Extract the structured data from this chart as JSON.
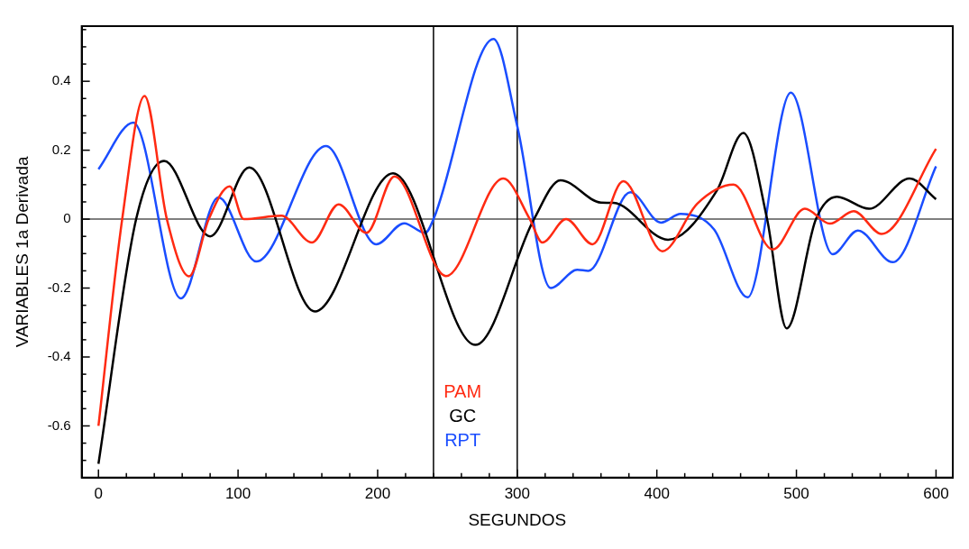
{
  "chart_data": {
    "type": "line",
    "xlabel": "SEGUNDOS",
    "ylabel": "VARIABLES 1a Derivada",
    "xlim": [
      -12,
      612
    ],
    "ylim": [
      -0.75,
      0.56
    ],
    "xticks": [
      0,
      {
        "value": 20,
        "label": null
      },
      {
        "value": 40,
        "label": null
      },
      {
        "value": 60,
        "label": null
      },
      {
        "value": 80,
        "label": null
      },
      100,
      {
        "value": 120,
        "label": null
      },
      {
        "value": 140,
        "label": null
      },
      {
        "value": 160,
        "label": null
      },
      {
        "value": 180,
        "label": null
      },
      200,
      {
        "value": 220,
        "label": null
      },
      {
        "value": 240,
        "label": null
      },
      {
        "value": 260,
        "label": null
      },
      {
        "value": 280,
        "label": null
      },
      300,
      {
        "value": 320,
        "label": null
      },
      {
        "value": 340,
        "label": null
      },
      {
        "value": 360,
        "label": null
      },
      {
        "value": 380,
        "label": null
      },
      400,
      {
        "value": 420,
        "label": null
      },
      {
        "value": 440,
        "label": null
      },
      {
        "value": 460,
        "label": null
      },
      {
        "value": 480,
        "label": null
      },
      500,
      {
        "value": 520,
        "label": null
      },
      {
        "value": 540,
        "label": null
      },
      {
        "value": 560,
        "label": null
      },
      {
        "value": 580,
        "label": null
      },
      600
    ],
    "yticks": [
      {
        "value": -0.7,
        "label": null
      },
      {
        "value": -0.65,
        "label": null
      },
      -0.6,
      {
        "value": -0.55,
        "label": null
      },
      {
        "value": -0.5,
        "label": null
      },
      {
        "value": -0.45,
        "label": null
      },
      -0.4,
      {
        "value": -0.35,
        "label": null
      },
      {
        "value": -0.3,
        "label": null
      },
      {
        "value": -0.25,
        "label": null
      },
      -0.2,
      {
        "value": -0.15,
        "label": null
      },
      {
        "value": -0.1,
        "label": null
      },
      {
        "value": -0.05,
        "label": null
      },
      0,
      {
        "value": 0.05,
        "label": null
      },
      {
        "value": 0.1,
        "label": null
      },
      {
        "value": 0.15,
        "label": null
      },
      0.2,
      {
        "value": 0.25,
        "label": null
      },
      {
        "value": 0.3,
        "label": null
      },
      {
        "value": 0.35,
        "label": null
      },
      0.4,
      {
        "value": 0.45,
        "label": null
      },
      {
        "value": 0.5,
        "label": null
      },
      {
        "value": 0.55,
        "label": null
      }
    ],
    "grid": false,
    "legend": "bottom",
    "marker": "none",
    "line_style": "solid",
    "ref_lines": [
      {
        "axis": "y",
        "value": 0,
        "color": "#555555"
      },
      {
        "axis": "x",
        "value": 240,
        "color": "#000000"
      },
      {
        "axis": "x",
        "value": 300,
        "color": "#000000"
      }
    ],
    "series": [
      {
        "name": "PAM",
        "color": "#ff2a12",
        "x": [
          0,
          17,
          33,
          49,
          65,
          79,
          94,
          104,
          131,
          153,
          172,
          192,
          212,
          249,
          290,
          309,
          318,
          335,
          354,
          376,
          404,
          429,
          455,
          483,
          506,
          524,
          541,
          561,
          600
        ],
        "values": [
          -0.6,
          0,
          0.357,
          0,
          -0.166,
          0,
          0.095,
          0,
          0.01,
          -0.068,
          0.043,
          -0.04,
          0.124,
          -0.165,
          0.118,
          0,
          -0.068,
          0,
          -0.073,
          0.11,
          -0.093,
          0.045,
          0.1,
          -0.088,
          0.03,
          -0.013,
          0.023,
          -0.043,
          0.204
        ]
      },
      {
        "name": "GC",
        "color": "#000000",
        "x": [
          0,
          27,
          47,
          80,
          108,
          155,
          211,
          270,
          312,
          331,
          360,
          369,
          408,
          443,
          462,
          479,
          493,
          514,
          529,
          552,
          581,
          600
        ],
        "values": [
          -0.71,
          0,
          0.169,
          -0.05,
          0.15,
          -0.268,
          0.133,
          -0.365,
          0,
          0.113,
          0.048,
          0.047,
          -0.06,
          0.083,
          0.25,
          0,
          -0.317,
          0,
          0.065,
          0.03,
          0.118,
          0.058
        ]
      },
      {
        "name": "RPT",
        "color": "#1a4dff",
        "x": [
          0,
          25,
          59,
          86,
          113,
          163,
          199,
          219,
          234,
          240,
          283,
          300,
          324,
          343,
          351,
          381,
          403,
          417,
          441,
          465,
          496,
          526,
          544,
          569,
          600
        ],
        "values": [
          0.145,
          0.28,
          -0.23,
          0.063,
          -0.123,
          0.212,
          -0.073,
          -0.012,
          -0.04,
          0,
          0.523,
          0.27,
          -0.2,
          -0.147,
          -0.15,
          0.078,
          -0.01,
          0.015,
          -0.03,
          -0.227,
          0.367,
          -0.102,
          -0.033,
          -0.125,
          0.153
        ]
      }
    ]
  }
}
